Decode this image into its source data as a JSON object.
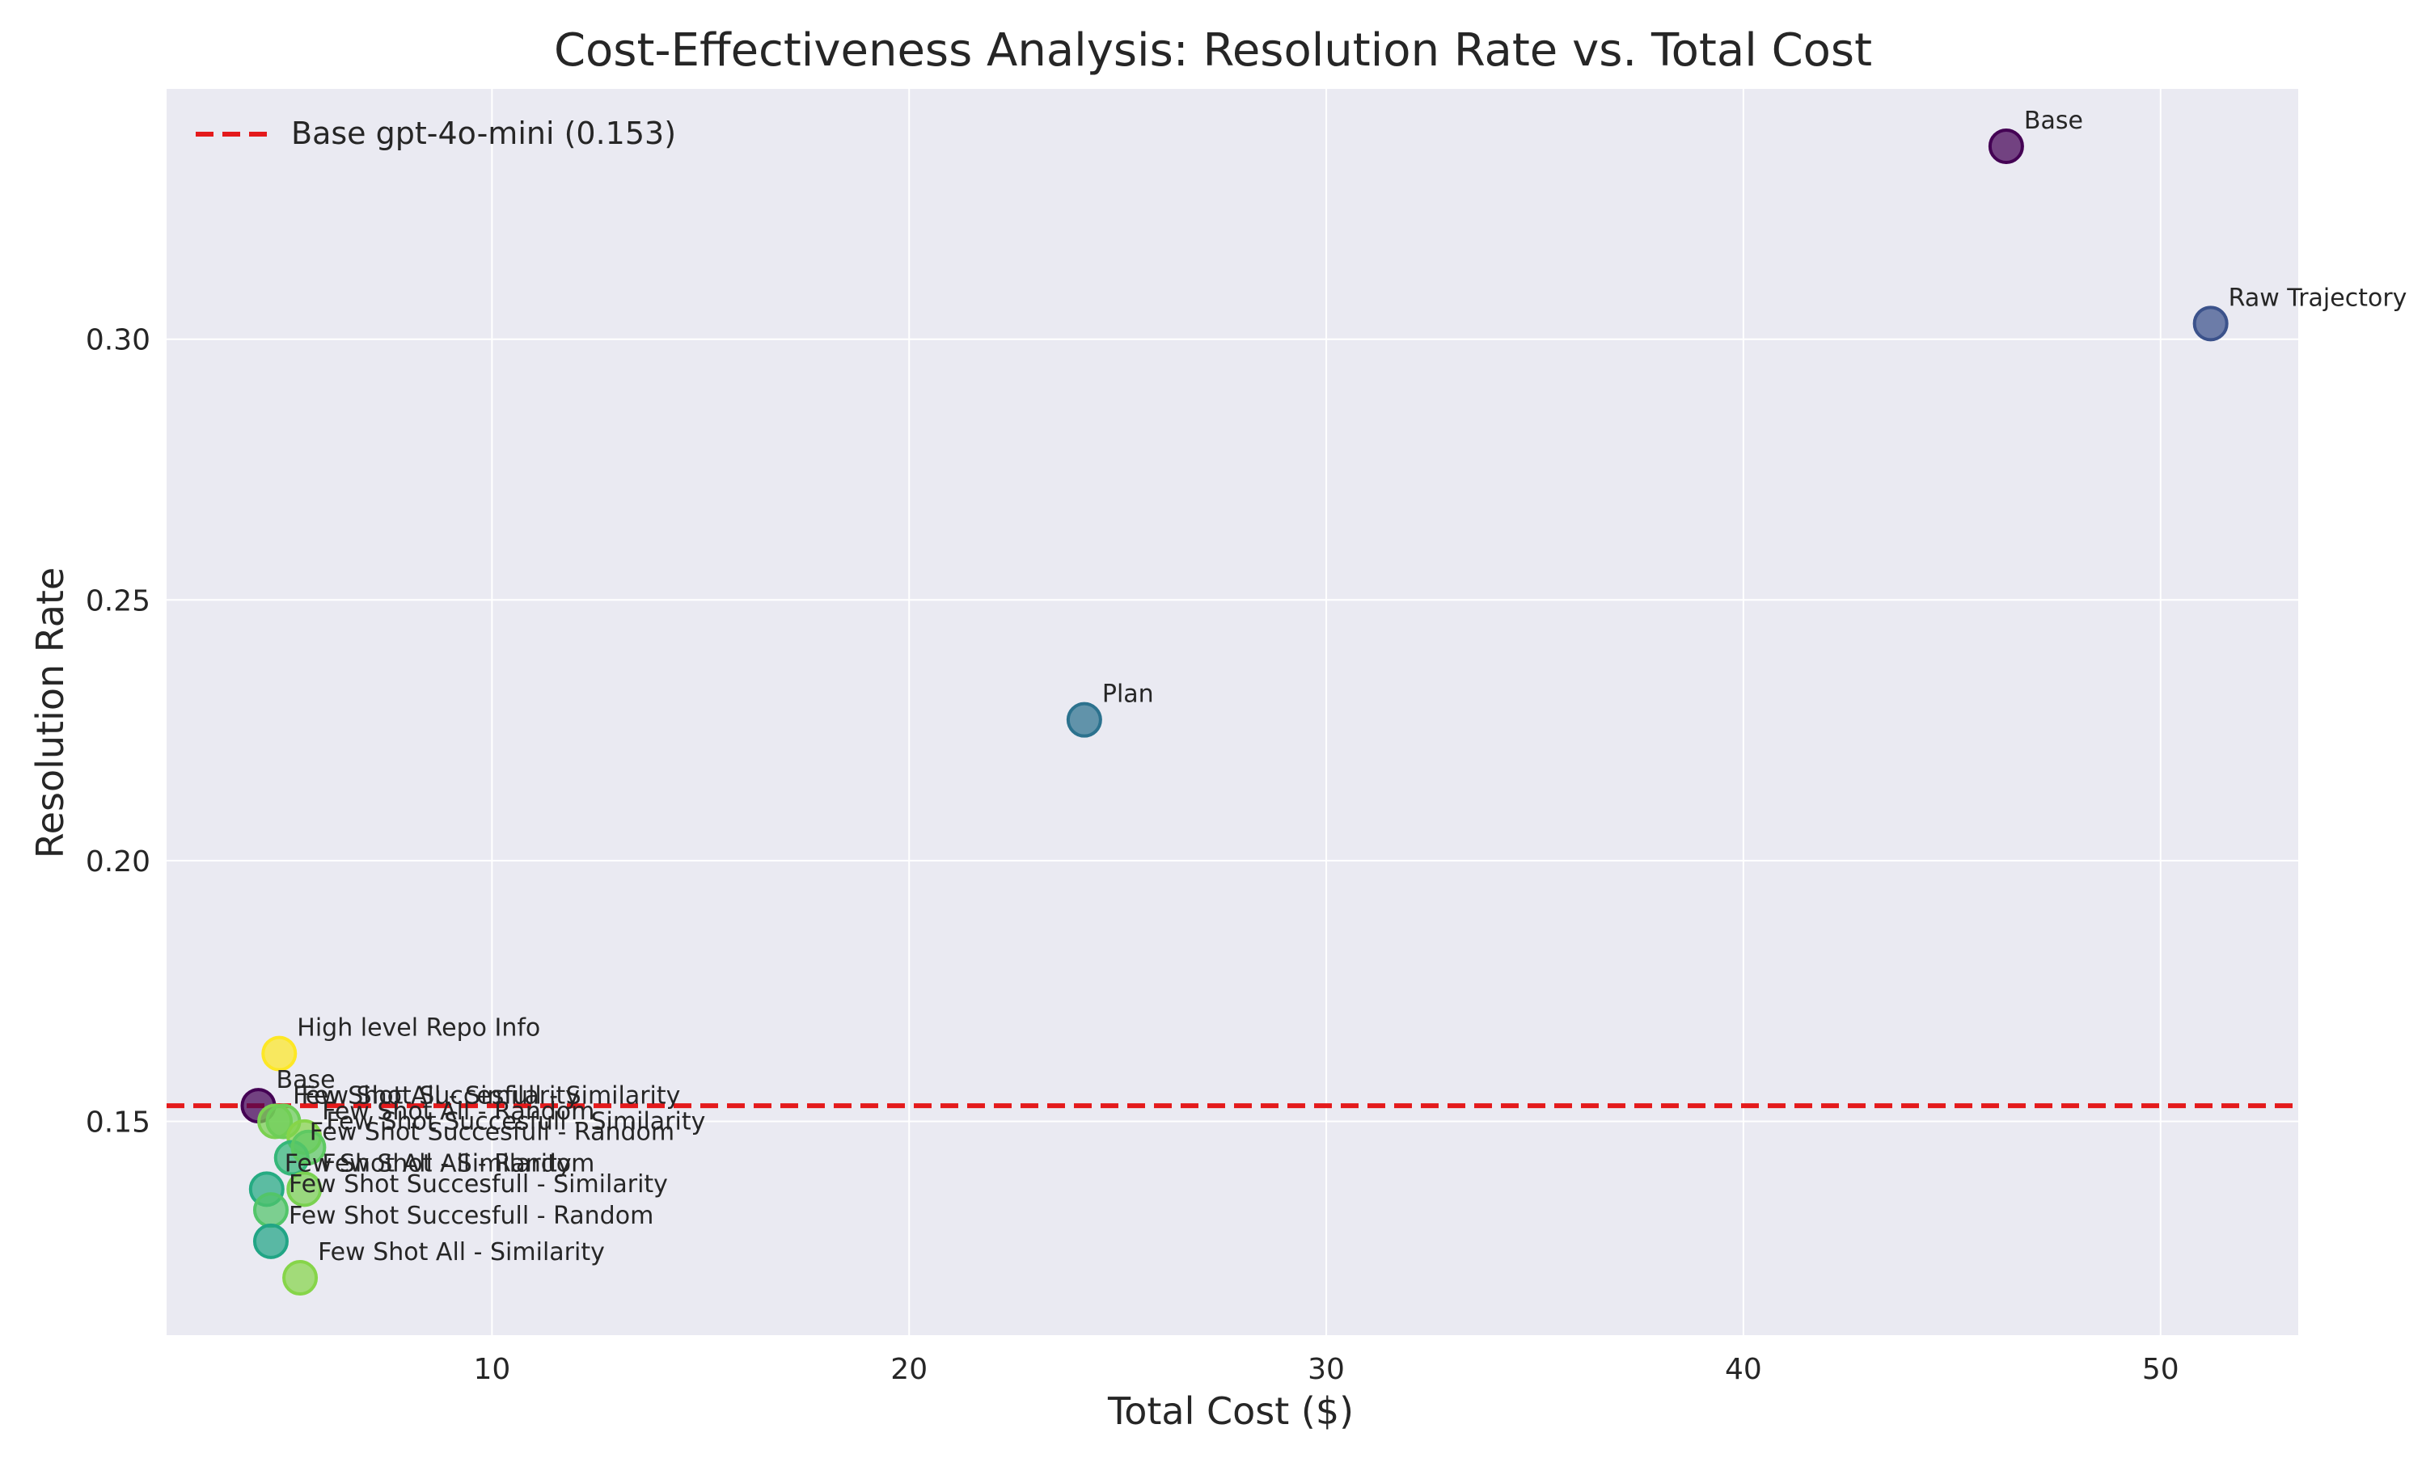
{
  "chart_data": {
    "type": "scatter",
    "title": "Cost-Effectiveness Analysis: Resolution Rate vs. Total Cost",
    "xlabel": "Total Cost ($)",
    "ylabel": "Resolution Rate",
    "xlim": [
      2.2,
      53.3
    ],
    "ylim": [
      0.109,
      0.348
    ],
    "xticks": [
      10,
      20,
      30,
      40,
      50
    ],
    "yticks": [
      0.15,
      0.2,
      0.25,
      0.3
    ],
    "xtick_labels": [
      "10",
      "20",
      "30",
      "40",
      "50"
    ],
    "ytick_labels": [
      "0.15",
      "0.20",
      "0.25",
      "0.30"
    ],
    "grid": true,
    "legend_position": "top-left",
    "reference_line": {
      "label": "Base gpt-4o-mini (0.153)",
      "y": 0.153,
      "color": "#e41a1c",
      "style": "dashed"
    },
    "colormap": "viridis",
    "points": [
      {
        "label": "Base",
        "x": 46.3,
        "y": 0.337,
        "color": "#440154"
      },
      {
        "label": "Raw Trajectory",
        "x": 51.2,
        "y": 0.303,
        "color": "#3b528b"
      },
      {
        "label": "Plan",
        "x": 24.2,
        "y": 0.227,
        "color": "#2c728e"
      },
      {
        "label": "High level Repo Info",
        "x": 4.9,
        "y": 0.163,
        "color": "#fde725"
      },
      {
        "label": "Base",
        "x": 4.4,
        "y": 0.153,
        "color": "#440154"
      },
      {
        "label": "Few Shot All - Similarity",
        "x": 4.8,
        "y": 0.15,
        "color": "#7ad151"
      },
      {
        "label": "Few Shot Succesfull - Similarity",
        "x": 5.0,
        "y": 0.15,
        "color": "#6ece58"
      },
      {
        "label": "Few Shot All - Random",
        "x": 5.5,
        "y": 0.147,
        "color": "#86d549"
      },
      {
        "label": "Few Shot Succesfull - Random",
        "x": 5.2,
        "y": 0.143,
        "color": "#35b779"
      },
      {
        "label": "Few Shot Succesfull - Similarity",
        "x": 5.6,
        "y": 0.145,
        "color": "#5ec962"
      },
      {
        "label": "Few Shot All - Similarity",
        "x": 4.6,
        "y": 0.137,
        "color": "#25ab82"
      },
      {
        "label": "Few Shot All - Random",
        "x": 5.5,
        "y": 0.137,
        "color": "#7ad151"
      },
      {
        "label": "Few Shot Succesfull - Similarity",
        "x": 4.7,
        "y": 0.133,
        "color": "#52c569"
      },
      {
        "label": "Few Shot Succesfull - Random",
        "x": 4.7,
        "y": 0.127,
        "color": "#21a585"
      },
      {
        "label": "Few Shot All - Similarity",
        "x": 5.4,
        "y": 0.12,
        "color": "#86d549"
      }
    ]
  }
}
